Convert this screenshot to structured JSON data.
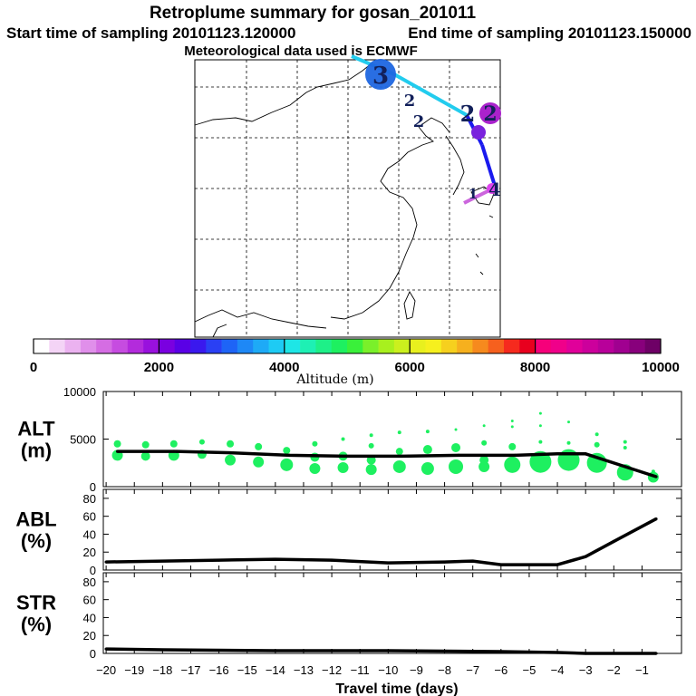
{
  "header": {
    "title": "Retroplume summary for gosan_201011",
    "start": "Start time of sampling 20101123.120000",
    "end": "End time of sampling 20101123.150000",
    "met": "Meteorological data used is ECMWF"
  },
  "colorbar": {
    "labels": [
      "0",
      "2000",
      "4000",
      "6000",
      "8000",
      "10000"
    ],
    "title": "Altitude (m)",
    "colors": [
      "#ffffff",
      "#f4d4f6",
      "#ebb2f0",
      "#e08fea",
      "#d56de3",
      "#c64ce0",
      "#b32bdc",
      "#9911dd",
      "#7a00e0",
      "#5a00e6",
      "#3a18ee",
      "#2a40f4",
      "#1e64f6",
      "#1e88f6",
      "#1eaaf6",
      "#1ecbf4",
      "#1ee6e6",
      "#1ef0b4",
      "#1ef088",
      "#1ef060",
      "#3af03a",
      "#7af02a",
      "#a8f01e",
      "#cbf01e",
      "#e8f01e",
      "#f6f01e",
      "#f6d01e",
      "#f6b01e",
      "#f68a1e",
      "#f6601e",
      "#f62a1e",
      "#e8001e",
      "#f6007a",
      "#f0008a",
      "#e0009a",
      "#cc009c",
      "#b8009a",
      "#a00090",
      "#88007c",
      "#6e0066"
    ]
  },
  "map": {
    "numerals": [
      "3",
      "2",
      "2",
      "2",
      "2",
      "1",
      "4"
    ],
    "colors": {
      "trajectory_light": "#22ccee",
      "trajectory_dark": "#1a1aee",
      "trajectory_pink": "#cc66dd",
      "blob_blue": "#1e66e0",
      "blob_purple": "#aa22cc",
      "blob_magenta": "#dd44ee"
    }
  },
  "chart_data": [
    {
      "type": "line",
      "name": "ALT",
      "ylabel": "ALT (m)",
      "ylabel_lines": [
        "ALT",
        "(m)"
      ],
      "ylim": [
        0,
        10000
      ],
      "yticks": [
        "10000",
        "5000",
        "0"
      ],
      "yticks_values": [
        10000,
        5000,
        0
      ],
      "x": [
        -19.6,
        -17.5,
        -15.5,
        -13.5,
        -11.5,
        -9.5,
        -7.5,
        -5.5,
        -4.0,
        -3.0,
        -0.5
      ],
      "values": [
        3700,
        3700,
        3550,
        3300,
        3200,
        3200,
        3300,
        3300,
        3450,
        3450,
        1050
      ],
      "dots": [
        {
          "x": -19.6,
          "y": 3300,
          "s": 6
        },
        {
          "x": -19.6,
          "y": 4500,
          "s": 4
        },
        {
          "x": -18.6,
          "y": 3200,
          "s": 5
        },
        {
          "x": -18.6,
          "y": 4400,
          "s": 4
        },
        {
          "x": -17.6,
          "y": 3300,
          "s": 6
        },
        {
          "x": -17.6,
          "y": 4500,
          "s": 4
        },
        {
          "x": -16.6,
          "y": 3400,
          "s": 5
        },
        {
          "x": -16.6,
          "y": 4700,
          "s": 3
        },
        {
          "x": -15.6,
          "y": 2800,
          "s": 6
        },
        {
          "x": -15.6,
          "y": 4500,
          "s": 4
        },
        {
          "x": -14.6,
          "y": 2600,
          "s": 6
        },
        {
          "x": -14.6,
          "y": 4200,
          "s": 4
        },
        {
          "x": -13.6,
          "y": 2300,
          "s": 7
        },
        {
          "x": -13.6,
          "y": 3800,
          "s": 4
        },
        {
          "x": -12.6,
          "y": 1900,
          "s": 6
        },
        {
          "x": -12.6,
          "y": 3100,
          "s": 5
        },
        {
          "x": -12.6,
          "y": 4500,
          "s": 3
        },
        {
          "x": -11.6,
          "y": 2000,
          "s": 6
        },
        {
          "x": -11.6,
          "y": 3200,
          "s": 5
        },
        {
          "x": -11.6,
          "y": 5000,
          "s": 2
        },
        {
          "x": -10.6,
          "y": 1800,
          "s": 6
        },
        {
          "x": -10.6,
          "y": 2800,
          "s": 5
        },
        {
          "x": -10.6,
          "y": 4300,
          "s": 3
        },
        {
          "x": -10.6,
          "y": 5400,
          "s": 2
        },
        {
          "x": -9.6,
          "y": 2100,
          "s": 7
        },
        {
          "x": -9.6,
          "y": 3700,
          "s": 4
        },
        {
          "x": -9.6,
          "y": 5700,
          "s": 2
        },
        {
          "x": -8.6,
          "y": 1900,
          "s": 7
        },
        {
          "x": -8.6,
          "y": 3900,
          "s": 5
        },
        {
          "x": -8.6,
          "y": 5800,
          "s": 2
        },
        {
          "x": -7.6,
          "y": 2100,
          "s": 8
        },
        {
          "x": -7.6,
          "y": 4100,
          "s": 5
        },
        {
          "x": -7.6,
          "y": 6000,
          "s": 1.5
        },
        {
          "x": -6.6,
          "y": 2100,
          "s": 6
        },
        {
          "x": -6.6,
          "y": 2800,
          "s": 5
        },
        {
          "x": -6.6,
          "y": 4600,
          "s": 3
        },
        {
          "x": -6.6,
          "y": 6400,
          "s": 1.5
        },
        {
          "x": -5.6,
          "y": 2300,
          "s": 9
        },
        {
          "x": -5.6,
          "y": 4200,
          "s": 4
        },
        {
          "x": -5.6,
          "y": 6300,
          "s": 1.5
        },
        {
          "x": -5.6,
          "y": 6900,
          "s": 1.5
        },
        {
          "x": -4.6,
          "y": 2600,
          "s": 12
        },
        {
          "x": -4.6,
          "y": 4700,
          "s": 2
        },
        {
          "x": -4.6,
          "y": 6400,
          "s": 1.5
        },
        {
          "x": -4.6,
          "y": 7700,
          "s": 1.5
        },
        {
          "x": -3.6,
          "y": 2800,
          "s": 12
        },
        {
          "x": -3.6,
          "y": 4600,
          "s": 2
        },
        {
          "x": -3.6,
          "y": 6800,
          "s": 1.5
        },
        {
          "x": -2.6,
          "y": 2500,
          "s": 11
        },
        {
          "x": -2.6,
          "y": 4400,
          "s": 3
        },
        {
          "x": -2.6,
          "y": 5500,
          "s": 2
        },
        {
          "x": -1.6,
          "y": 1500,
          "s": 9
        },
        {
          "x": -1.6,
          "y": 4100,
          "s": 2
        },
        {
          "x": -1.6,
          "y": 4700,
          "s": 2
        },
        {
          "x": -0.6,
          "y": 1000,
          "s": 6
        },
        {
          "x": -0.6,
          "y": 1600,
          "s": 2
        }
      ],
      "colors": {
        "line": "#000000",
        "dots": "#1ef060"
      }
    },
    {
      "type": "line",
      "name": "ABL",
      "ylabel": "ABL (%)",
      "ylabel_lines": [
        "ABL",
        "(%)"
      ],
      "ylim": [
        0,
        90
      ],
      "yticks": [
        "80",
        "60",
        "40",
        "20",
        "0"
      ],
      "yticks_values": [
        80,
        60,
        40,
        20,
        0
      ],
      "x": [
        -20,
        -16,
        -14,
        -12,
        -10,
        -8,
        -7,
        -6,
        -4,
        -3,
        -2,
        -0.5
      ],
      "values": [
        9,
        11,
        12,
        11,
        8,
        9,
        10,
        6,
        6,
        15,
        32,
        57
      ],
      "colors": {
        "line": "#000000"
      }
    },
    {
      "type": "line",
      "name": "STR",
      "ylabel": "STR (%)",
      "ylabel_lines": [
        "STR",
        "(%)"
      ],
      "ylim": [
        0,
        90
      ],
      "yticks": [
        "80",
        "60",
        "40",
        "20",
        "0"
      ],
      "yticks_values": [
        80,
        60,
        40,
        20,
        0
      ],
      "x": [
        -20,
        -18,
        -14,
        -10,
        -6,
        -4,
        -3,
        -0.5
      ],
      "values": [
        5,
        4,
        3,
        3,
        2,
        1,
        0,
        0
      ],
      "colors": {
        "line": "#000000"
      }
    }
  ],
  "xaxis": {
    "label": "Travel time (days)",
    "xlim": [
      -20.1,
      0.4
    ],
    "ticks": [
      -20,
      -19,
      -18,
      -17,
      -16,
      -15,
      -14,
      -13,
      -12,
      -11,
      -10,
      -9,
      -8,
      -7,
      -6,
      -5,
      -4,
      -3,
      -2,
      -1
    ],
    "tick_labels": [
      "−20",
      "−19",
      "−18",
      "−17",
      "−16",
      "−15",
      "−14",
      "−13",
      "−12",
      "−11",
      "−10",
      "−9",
      "−8",
      "−7",
      "−6",
      "−5",
      "−4",
      "−3",
      "−2",
      "−1"
    ]
  }
}
